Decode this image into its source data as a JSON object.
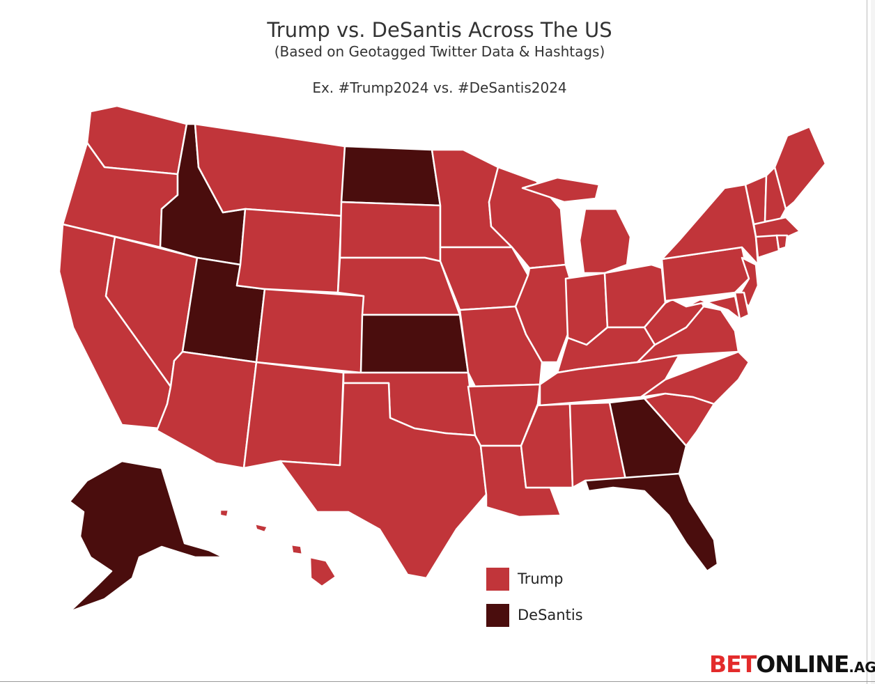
{
  "title": "Trump vs. DeSantis Across The US",
  "subtitle": "(Based on Geotagged Twitter Data & Hashtags)",
  "example": "Ex. #Trump2024 vs. #DeSantis2024",
  "colors": {
    "Trump": "#c1353a",
    "DeSantis": "#4a0d0d",
    "border": "#ffffff"
  },
  "legend": [
    {
      "label": "Trump",
      "color": "#c1353a"
    },
    {
      "label": "DeSantis",
      "color": "#4a0d0d"
    }
  ],
  "winners": {
    "Washington": "Trump",
    "Oregon": "Trump",
    "California": "Trump",
    "Nevada": "Trump",
    "Idaho": "DeSantis",
    "Utah": "DeSantis",
    "Arizona": "Trump",
    "Montana": "Trump",
    "Wyoming": "Trump",
    "Colorado": "Trump",
    "New Mexico": "Trump",
    "North Dakota": "DeSantis",
    "South Dakota": "Trump",
    "Nebraska": "Trump",
    "Kansas": "DeSantis",
    "Oklahoma": "Trump",
    "Texas": "Trump",
    "Minnesota": "Trump",
    "Iowa": "Trump",
    "Missouri": "Trump",
    "Arkansas": "Trump",
    "Louisiana": "Trump",
    "Wisconsin": "Trump",
    "Illinois": "Trump",
    "Michigan": "Trump",
    "Indiana": "Trump",
    "Ohio": "Trump",
    "Kentucky": "Trump",
    "Tennessee": "Trump",
    "Mississippi": "Trump",
    "Alabama": "Trump",
    "Georgia": "DeSantis",
    "Florida": "DeSantis",
    "South Carolina": "Trump",
    "North Carolina": "Trump",
    "Virginia": "Trump",
    "West Virginia": "Trump",
    "Pennsylvania": "Trump",
    "New York": "Trump",
    "Vermont": "Trump",
    "New Hampshire": "Trump",
    "Maine": "Trump",
    "Massachusetts": "Trump",
    "Connecticut": "Trump",
    "Rhode Island": "Trump",
    "New Jersey": "Trump",
    "Delaware": "Trump",
    "Maryland": "Trump",
    "Alaska": "DeSantis",
    "Hawaii": "Trump"
  },
  "brand": {
    "bet": "BET",
    "online": "ONLINE",
    "ag": ".AG"
  }
}
